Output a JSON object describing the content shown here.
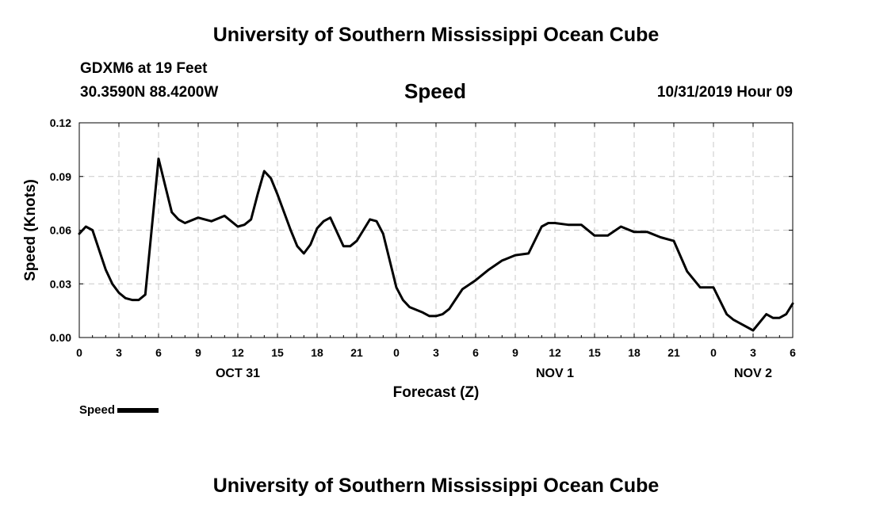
{
  "header": {
    "title": "University of Southern Mississippi Ocean Cube",
    "station": "GDXM6 at 19 Feet",
    "coordinates": "30.3590N 88.4200W",
    "chart_title": "Speed",
    "timestamp": "10/31/2019 Hour 09"
  },
  "footer": {
    "title": "University of Southern Mississippi Ocean Cube"
  },
  "legend": {
    "label": "Speed",
    "color": "#000000"
  },
  "chart_data": {
    "type": "line",
    "title": "Speed",
    "xlabel": "Forecast (Z)",
    "ylabel": "Speed (Knots)",
    "xlim": [
      0,
      54
    ],
    "ylim": [
      0,
      0.12
    ],
    "grid": true,
    "legend_position": "bottom-left",
    "x_ticks": [
      0,
      3,
      6,
      9,
      12,
      15,
      18,
      21,
      24,
      27,
      30,
      33,
      36,
      39,
      42,
      45,
      48,
      51,
      54
    ],
    "x_tick_labels": [
      "0",
      "3",
      "6",
      "9",
      "12",
      "15",
      "18",
      "21",
      "0",
      "3",
      "6",
      "9",
      "12",
      "15",
      "18",
      "21",
      "0",
      "3",
      "6"
    ],
    "y_ticks": [
      0,
      0.03,
      0.06,
      0.09,
      0.12
    ],
    "y_tick_labels": [
      "0.00",
      "0.03",
      "0.06",
      "0.09",
      "0.12"
    ],
    "day_labels": [
      {
        "x": 12,
        "label": "OCT 31"
      },
      {
        "x": 36,
        "label": "NOV 1"
      },
      {
        "x": 51,
        "label": "NOV 2"
      }
    ],
    "series": [
      {
        "name": "Speed",
        "color": "#000000",
        "x": [
          0,
          0.5,
          1,
          2,
          2.5,
          3,
          3.5,
          4,
          4.5,
          5,
          6,
          6.5,
          7,
          7.5,
          8,
          9,
          10,
          11,
          12,
          12.5,
          13,
          13.5,
          14,
          14.5,
          15,
          16,
          16.5,
          17,
          17.5,
          18,
          18.5,
          19,
          19.5,
          20,
          20.5,
          21,
          22,
          22.5,
          23,
          24,
          24.5,
          25,
          26,
          26.5,
          27,
          27.5,
          28,
          29,
          30,
          31,
          32,
          33,
          34,
          35,
          35.5,
          36,
          37,
          38,
          39,
          40,
          41,
          42,
          43,
          44,
          45,
          46,
          47,
          48,
          49,
          49.5,
          50,
          51,
          52,
          52.5,
          53,
          53.5,
          54
        ],
        "y": [
          0.058,
          0.062,
          0.06,
          0.038,
          0.03,
          0.025,
          0.022,
          0.021,
          0.021,
          0.024,
          0.1,
          0.085,
          0.07,
          0.066,
          0.064,
          0.067,
          0.065,
          0.068,
          0.062,
          0.063,
          0.066,
          0.08,
          0.093,
          0.089,
          0.08,
          0.06,
          0.051,
          0.047,
          0.052,
          0.061,
          0.065,
          0.067,
          0.059,
          0.051,
          0.051,
          0.054,
          0.066,
          0.065,
          0.058,
          0.028,
          0.021,
          0.017,
          0.014,
          0.012,
          0.012,
          0.013,
          0.016,
          0.027,
          0.032,
          0.038,
          0.043,
          0.046,
          0.047,
          0.062,
          0.064,
          0.064,
          0.063,
          0.063,
          0.057,
          0.057,
          0.062,
          0.059,
          0.059,
          0.056,
          0.054,
          0.037,
          0.028,
          0.028,
          0.013,
          0.01,
          0.008,
          0.004,
          0.013,
          0.011,
          0.011,
          0.013,
          0.019
        ]
      }
    ]
  }
}
